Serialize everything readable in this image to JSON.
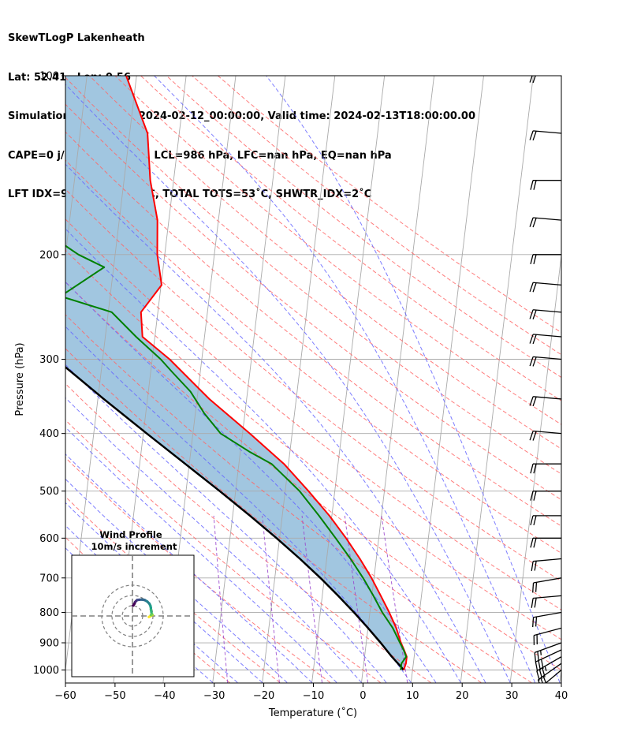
{
  "header": {
    "line1": "SkewTLogP Lakenheath",
    "line2": "Lat: 52.41   Lon: 0.56",
    "line3": "Simulation start time: 2024-02-12_00:00:00, Valid time: 2024-02-13T18:00:00.00",
    "line4": "CAPE=0 j/kg, CIN=0 j/kg, LCL=986 hPa, LFC=nan hPa, EQ=nan hPa",
    "line5": "LFT IDX=9˚C, K IDX=30˚C, TOTAL TOTS=53˚C, SHWTR_IDX=2˚C"
  },
  "chart_data": [
    {
      "type": "line",
      "chart_kind": "skew-T log-P",
      "xlabel": "Temperature (˚C)",
      "ylabel": "Pressure (hPa)",
      "x_ticks": [
        -60,
        -50,
        -40,
        -30,
        -20,
        -10,
        0,
        10,
        20,
        30,
        40
      ],
      "x_tick_labels": [
        "−60",
        "−50",
        "−40",
        "−30",
        "−20",
        "−10",
        "0",
        "10",
        "20",
        "30",
        "40"
      ],
      "y_ticks": [
        100,
        200,
        300,
        400,
        500,
        600,
        700,
        800,
        900,
        1000
      ],
      "y_tick_labels": [
        "100",
        "200",
        "300",
        "400",
        "500",
        "600",
        "700",
        "800",
        "900",
        "1000"
      ],
      "xlim": [
        -60,
        40
      ],
      "ylim": [
        1050,
        100
      ],
      "y_scale": "log",
      "grid": true,
      "colors": {
        "temperature": "#ff0000",
        "dewpoint": "#008000",
        "parcel": "#000000",
        "cape_fill": "#a1c6e0",
        "dry_adiabats": "#ff6666",
        "moist_adiabats": "#6666ff",
        "mixing_ratio": "#9944cc",
        "isotherms": "#aaaaaa"
      },
      "series": [
        {
          "key": "temperature",
          "points": [
            {
              "p": 1000,
              "t": 8.2
            },
            {
              "p": 975,
              "t": 8.5
            },
            {
              "p": 950,
              "t": 8.5
            },
            {
              "p": 925,
              "t": 7.8
            },
            {
              "p": 900,
              "t": 7.0
            },
            {
              "p": 850,
              "t": 5.7
            },
            {
              "p": 800,
              "t": 3.9
            },
            {
              "p": 750,
              "t": 1.8
            },
            {
              "p": 700,
              "t": -0.5
            },
            {
              "p": 650,
              "t": -3.3
            },
            {
              "p": 600,
              "t": -6.6
            },
            {
              "p": 550,
              "t": -10.5
            },
            {
              "p": 500,
              "t": -15.3
            },
            {
              "p": 450,
              "t": -20.9
            },
            {
              "p": 400,
              "t": -28.5
            },
            {
              "p": 350,
              "t": -37.5
            },
            {
              "p": 300,
              "t": -46.5
            },
            {
              "p": 275,
              "t": -52.5
            },
            {
              "p": 250,
              "t": -53.4
            },
            {
              "p": 225,
              "t": -49.9
            },
            {
              "p": 200,
              "t": -51.5
            },
            {
              "p": 175,
              "t": -52.3
            },
            {
              "p": 150,
              "t": -54.7
            },
            {
              "p": 125,
              "t": -56.4
            },
            {
              "p": 100,
              "t": -62.1
            }
          ]
        },
        {
          "key": "dewpoint",
          "points": [
            {
              "p": 1000,
              "t": 7.6
            },
            {
              "p": 975,
              "t": 7.6
            },
            {
              "p": 950,
              "t": 8.4
            },
            {
              "p": 925,
              "t": 7.7
            },
            {
              "p": 900,
              "t": 6.8
            },
            {
              "p": 850,
              "t": 5.0
            },
            {
              "p": 800,
              "t": 2.5
            },
            {
              "p": 750,
              "t": 0.3
            },
            {
              "p": 700,
              "t": -2.2
            },
            {
              "p": 650,
              "t": -5.2
            },
            {
              "p": 600,
              "t": -8.7
            },
            {
              "p": 550,
              "t": -12.6
            },
            {
              "p": 500,
              "t": -17.1
            },
            {
              "p": 450,
              "t": -23.4
            },
            {
              "p": 430,
              "t": -28.0
            },
            {
              "p": 400,
              "t": -34.4
            },
            {
              "p": 370,
              "t": -38.2
            },
            {
              "p": 340,
              "t": -41.5
            },
            {
              "p": 315,
              "t": -45.7
            },
            {
              "p": 300,
              "t": -48.3
            },
            {
              "p": 275,
              "t": -53.8
            },
            {
              "p": 250,
              "t": -59.3
            },
            {
              "p": 235,
              "t": -70.0
            },
            {
              "p": 210,
              "t": -61.9
            },
            {
              "p": 200,
              "t": -67.4
            },
            {
              "p": 175,
              "t": -78.5
            },
            {
              "p": 150,
              "t": -79.2
            },
            {
              "p": 125,
              "t": -77.2
            },
            {
              "p": 100,
              "t": -77.7
            }
          ]
        },
        {
          "key": "parcel",
          "points": [
            {
              "p": 1000,
              "t": 8.2
            },
            {
              "p": 986,
              "t": 7.5
            },
            {
              "p": 950,
              "t": 5.5
            },
            {
              "p": 900,
              "t": 2.9
            },
            {
              "p": 850,
              "t": 0.0
            },
            {
              "p": 800,
              "t": -3.2
            },
            {
              "p": 750,
              "t": -6.8
            },
            {
              "p": 700,
              "t": -10.8
            },
            {
              "p": 650,
              "t": -15.4
            },
            {
              "p": 600,
              "t": -20.6
            },
            {
              "p": 550,
              "t": -26.5
            },
            {
              "p": 500,
              "t": -33.2
            },
            {
              "p": 450,
              "t": -40.8
            },
            {
              "p": 400,
              "t": -49.3
            },
            {
              "p": 350,
              "t": -58.8
            },
            {
              "p": 300,
              "t": -69.4
            },
            {
              "p": 250,
              "t": -81.2
            },
            {
              "p": 200,
              "t": -94.5
            },
            {
              "p": 150,
              "t": -110.0
            },
            {
              "p": 125,
              "t": -119.5
            },
            {
              "p": 100,
              "t": -130.0
            }
          ]
        }
      ],
      "wind_barbs_kt": [
        {
          "p": 1000,
          "speed": 25,
          "dir": 230
        },
        {
          "p": 975,
          "speed": 30,
          "dir": 235
        },
        {
          "p": 950,
          "speed": 35,
          "dir": 240
        },
        {
          "p": 925,
          "speed": 30,
          "dir": 245
        },
        {
          "p": 900,
          "speed": 25,
          "dir": 250
        },
        {
          "p": 850,
          "speed": 20,
          "dir": 255
        },
        {
          "p": 800,
          "speed": 20,
          "dir": 260
        },
        {
          "p": 750,
          "speed": 20,
          "dir": 265
        },
        {
          "p": 700,
          "speed": 20,
          "dir": 260
        },
        {
          "p": 650,
          "speed": 20,
          "dir": 265
        },
        {
          "p": 600,
          "speed": 20,
          "dir": 270
        },
        {
          "p": 550,
          "speed": 20,
          "dir": 270
        },
        {
          "p": 500,
          "speed": 20,
          "dir": 270
        },
        {
          "p": 450,
          "speed": 20,
          "dir": 270
        },
        {
          "p": 400,
          "speed": 20,
          "dir": 275
        },
        {
          "p": 350,
          "speed": 20,
          "dir": 275
        },
        {
          "p": 300,
          "speed": 20,
          "dir": 275
        },
        {
          "p": 275,
          "speed": 20,
          "dir": 275
        },
        {
          "p": 250,
          "speed": 20,
          "dir": 275
        },
        {
          "p": 225,
          "speed": 20,
          "dir": 275
        },
        {
          "p": 200,
          "speed": 20,
          "dir": 270
        },
        {
          "p": 175,
          "speed": 20,
          "dir": 275
        },
        {
          "p": 150,
          "speed": 20,
          "dir": 270
        },
        {
          "p": 125,
          "speed": 20,
          "dir": 275
        },
        {
          "p": 100,
          "speed": 20,
          "dir": 275
        }
      ]
    },
    {
      "type": "scatter",
      "chart_kind": "hodograph",
      "title": "Wind Profile",
      "subtitle": "10m/s increment",
      "ring_increment_ms": 10,
      "rings": [
        10,
        20,
        30
      ],
      "colormap": "viridis",
      "points": [
        {
          "u": 16.0,
          "v": -1.0
        },
        {
          "u": 17.0,
          "v": -0.5
        },
        {
          "u": 18.5,
          "v": 0.5
        },
        {
          "u": 19.5,
          "v": 1.0
        },
        {
          "u": 18.0,
          "v": 1.0
        },
        {
          "u": 19.0,
          "v": 2.0
        },
        {
          "u": 18.5,
          "v": 3.5
        },
        {
          "u": 18.0,
          "v": 6.5
        },
        {
          "u": 18.0,
          "v": 8.0
        },
        {
          "u": 17.5,
          "v": 10.0
        },
        {
          "u": 16.5,
          "v": 12.0
        },
        {
          "u": 14.5,
          "v": 14.0
        },
        {
          "u": 12.0,
          "v": 15.5
        },
        {
          "u": 9.0,
          "v": 16.0
        },
        {
          "u": 6.5,
          "v": 15.8
        },
        {
          "u": 4.5,
          "v": 15.5
        },
        {
          "u": 3.5,
          "v": 14.5
        },
        {
          "u": 2.5,
          "v": 13.5
        },
        {
          "u": 2.0,
          "v": 12.0
        },
        {
          "u": 0.5,
          "v": 10.0
        }
      ]
    }
  ]
}
